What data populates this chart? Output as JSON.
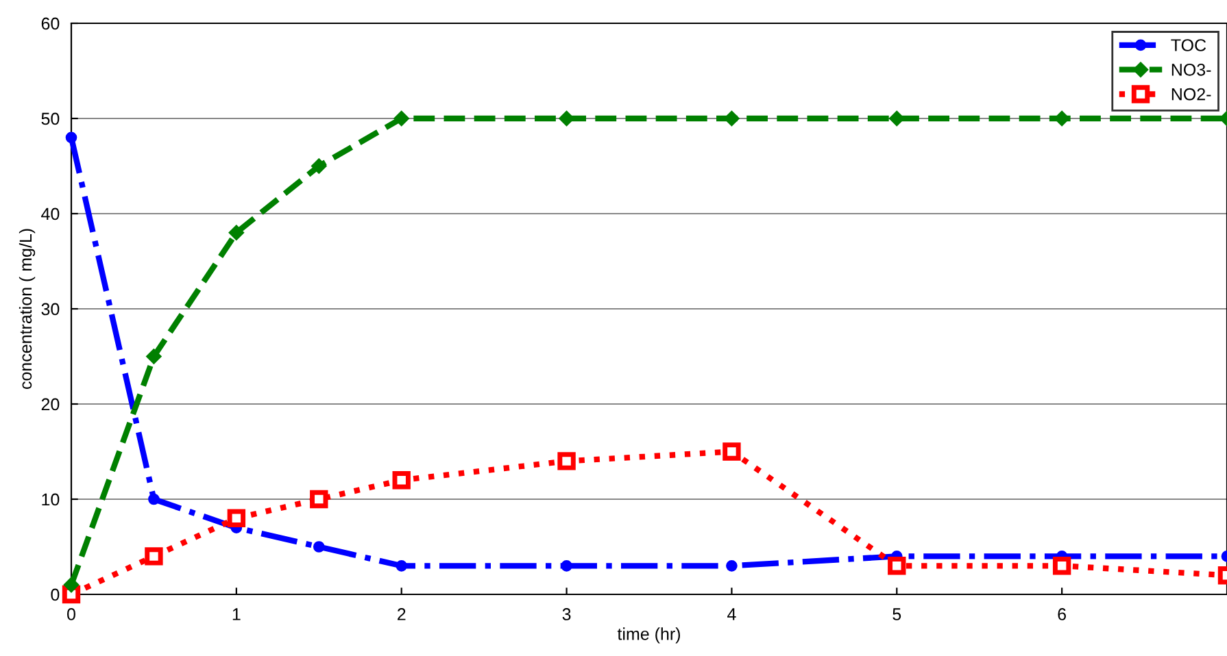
{
  "chart_data": {
    "type": "line",
    "xlabel": "time (hr)",
    "ylabel": "concentration ( mg/L)",
    "x": [
      0,
      0.5,
      1,
      1.5,
      2,
      3,
      4,
      5,
      6,
      7
    ],
    "series": [
      {
        "name": "TOC",
        "color": "#0000ff",
        "values": [
          48,
          10,
          7,
          5,
          3,
          3,
          3,
          4,
          4,
          4
        ],
        "marker": "circle",
        "line_style": "dashdot"
      },
      {
        "name": "NO3-",
        "color": "#008000",
        "values": [
          1,
          25,
          38,
          45,
          50,
          50,
          50,
          50,
          50,
          50
        ],
        "marker": "diamond",
        "line_style": "dashed"
      },
      {
        "name": "NO2-",
        "color": "#ff0000",
        "values": [
          0,
          4,
          8,
          10,
          12,
          14,
          15,
          3,
          3,
          2
        ],
        "marker": "square",
        "line_style": "dotted"
      }
    ],
    "xlim": [
      0,
      7
    ],
    "xticks": [
      0,
      1,
      2,
      3,
      4,
      5,
      6
    ],
    "ylim": [
      0,
      60
    ],
    "yticks": [
      0,
      10,
      20,
      30,
      40,
      50,
      60
    ],
    "grid": "y",
    "legend": "top right"
  }
}
